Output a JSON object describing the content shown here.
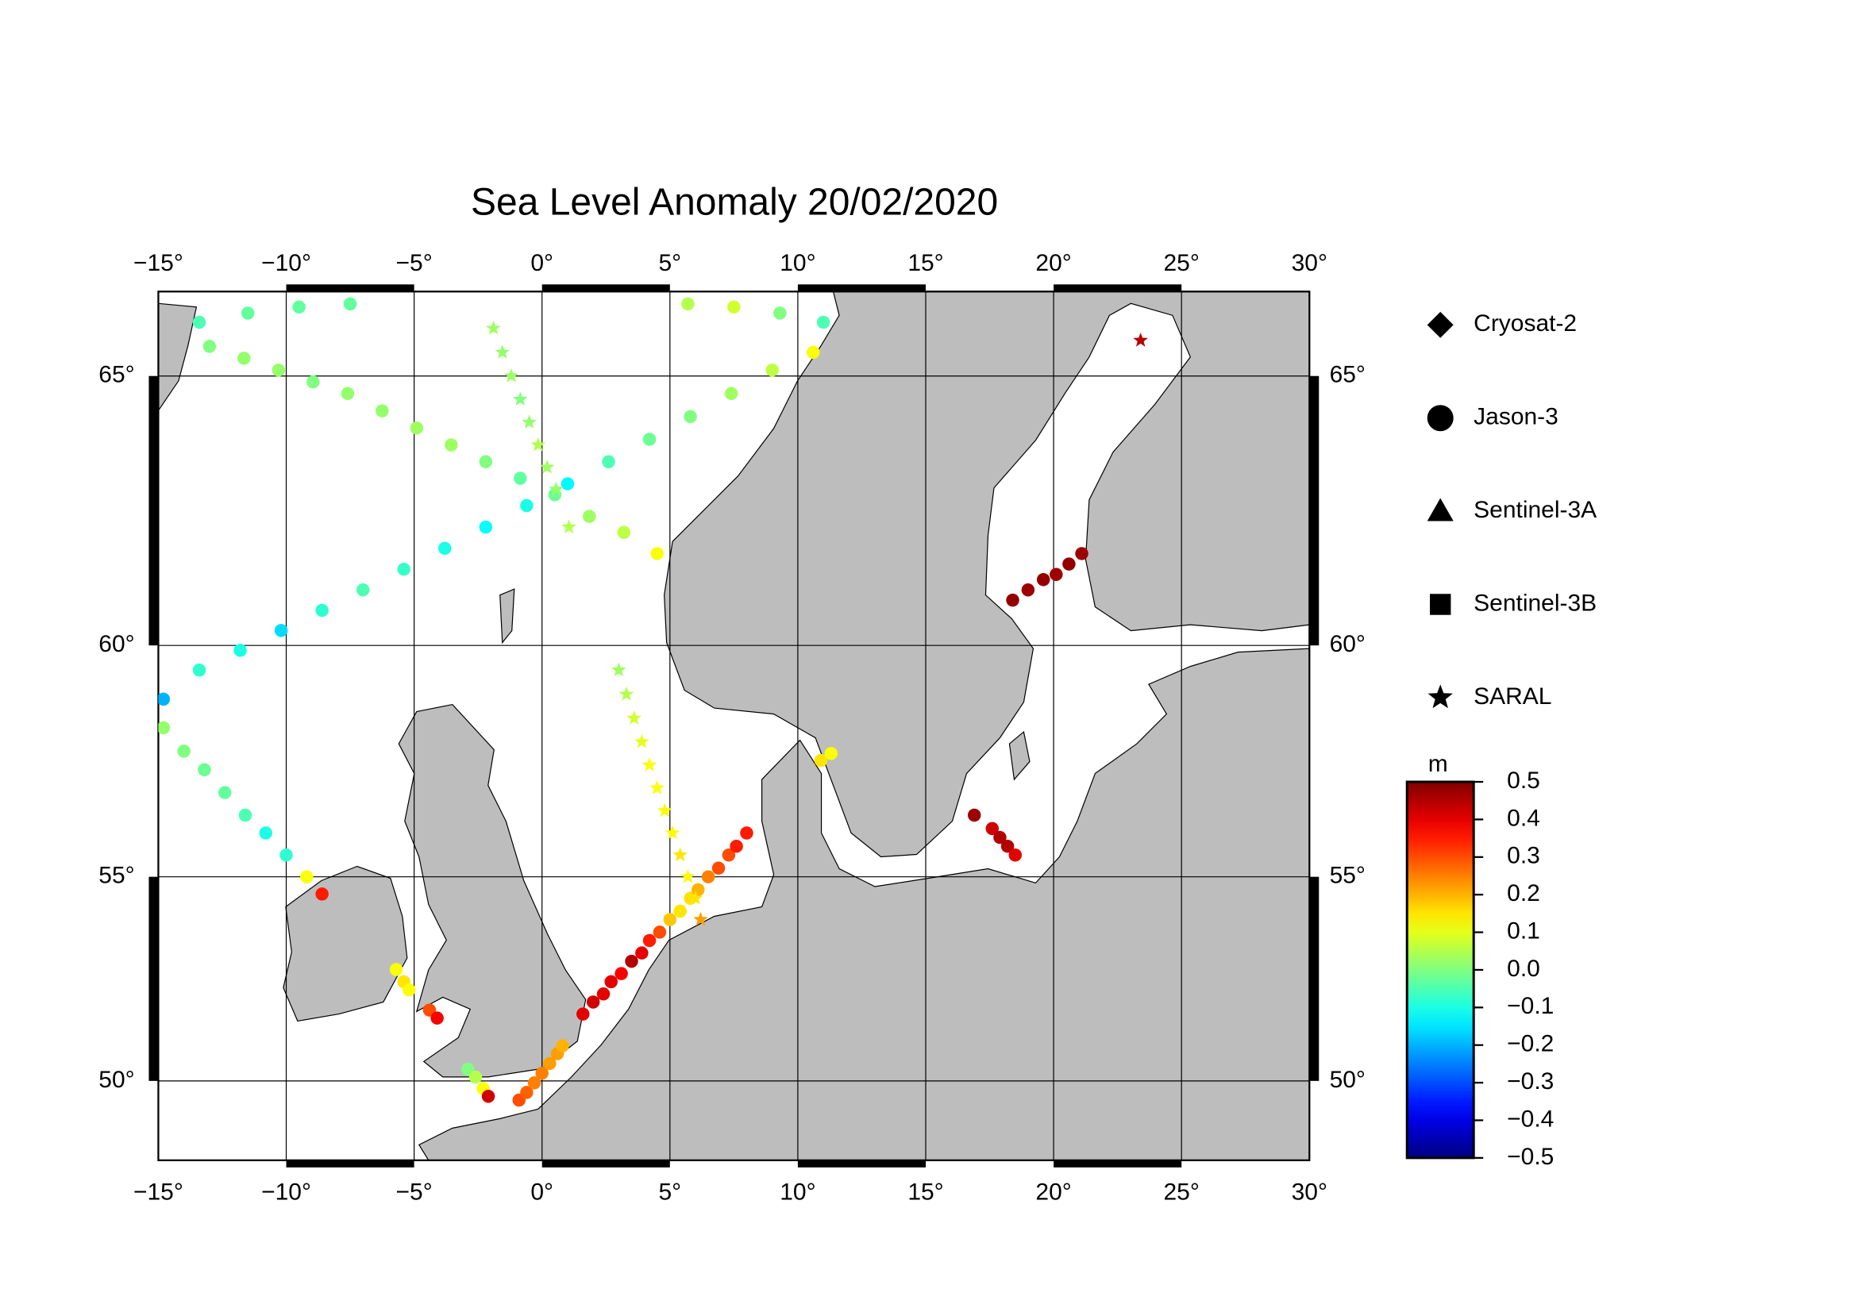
{
  "chart_data": {
    "type": "map",
    "title": "Sea Level Anomaly 20/02/2020",
    "projection": "mercator",
    "xlim": [
      -15,
      30
    ],
    "ylim": [
      47.9,
      66.4
    ],
    "xticks": [
      {
        "value": -15,
        "label": "−15°"
      },
      {
        "value": -10,
        "label": "−10°"
      },
      {
        "value": -5,
        "label": "−5°"
      },
      {
        "value": 0,
        "label": "0°"
      },
      {
        "value": 5,
        "label": "5°"
      },
      {
        "value": 10,
        "label": "10°"
      },
      {
        "value": 15,
        "label": "15°"
      },
      {
        "value": 20,
        "label": "20°"
      },
      {
        "value": 25,
        "label": "25°"
      },
      {
        "value": 30,
        "label": "30°"
      }
    ],
    "yticks": [
      {
        "value": 50,
        "label": "50°"
      },
      {
        "value": 55,
        "label": "55°"
      },
      {
        "value": 60,
        "label": "60°"
      },
      {
        "value": 65,
        "label": "65°"
      }
    ],
    "grid": true,
    "colorbar": {
      "label": "m",
      "colormap": "jet",
      "clim": [
        -0.5,
        0.5
      ],
      "ticks": [
        {
          "value": 0.5,
          "label": "0.5"
        },
        {
          "value": 0.4,
          "label": "0.4"
        },
        {
          "value": 0.3,
          "label": "0.3"
        },
        {
          "value": 0.2,
          "label": "0.2"
        },
        {
          "value": 0.1,
          "label": "0.1"
        },
        {
          "value": 0,
          "label": "0.0"
        },
        {
          "value": -0.1,
          "label": "−0.1"
        },
        {
          "value": -0.2,
          "label": "−0.2"
        },
        {
          "value": -0.3,
          "label": "−0.3"
        },
        {
          "value": -0.4,
          "label": "−0.4"
        },
        {
          "value": -0.5,
          "label": "−0.5"
        }
      ]
    },
    "series": [
      {
        "name": "Cryosat-2",
        "marker": "diamond",
        "lon": [],
        "lat": [],
        "values": []
      },
      {
        "name": "Jason-3",
        "marker": "circle",
        "lon": [
          -13.4,
          -11.8,
          -10.2,
          -8.6,
          -7.0,
          -5.4,
          -3.8,
          -2.2,
          -0.6,
          1.0,
          2.6,
          4.2,
          5.8,
          7.4,
          9.0,
          10.6,
          -13.0,
          -11.65,
          -10.3,
          -8.95,
          -7.6,
          -6.25,
          -4.9,
          -3.55,
          -2.2,
          -0.85,
          0.5,
          1.85,
          3.2,
          4.5,
          -13.4,
          -11.5,
          -9.5,
          -7.5,
          5.7,
          7.5,
          9.3,
          11.0,
          -14.8,
          -14.8,
          -14.0,
          -13.2,
          -12.4,
          -11.6,
          -10.8,
          -10.0,
          -9.2,
          -8.6,
          -5.7,
          -5.4,
          -5.2,
          -4.4,
          -4.1,
          -2.9,
          -2.6,
          -2.3,
          -2.1,
          -0.9,
          -0.6,
          -0.3,
          0.0,
          0.3,
          0.6,
          0.8,
          1.6,
          2.0,
          2.4,
          2.7,
          3.1,
          3.5,
          3.9,
          4.2,
          4.6,
          5.0,
          5.4,
          5.8,
          6.1,
          6.5,
          6.9,
          7.3,
          7.6,
          8.0,
          10.9,
          11.3,
          16.9,
          17.6,
          17.9,
          18.2,
          18.5,
          18.4,
          19.0,
          19.6,
          20.1,
          20.6,
          21.1
        ],
        "lat": [
          59.5,
          59.9,
          60.3,
          60.7,
          61.1,
          61.5,
          61.9,
          62.3,
          62.7,
          63.1,
          63.5,
          63.9,
          64.3,
          64.7,
          65.1,
          65.4,
          65.5,
          65.3,
          65.1,
          64.9,
          64.7,
          64.4,
          64.1,
          63.8,
          63.5,
          63.2,
          62.9,
          62.5,
          62.2,
          61.8,
          65.9,
          66.05,
          66.15,
          66.2,
          66.2,
          66.15,
          66.05,
          65.9,
          58.9,
          58.3,
          57.8,
          57.4,
          56.9,
          56.4,
          56.0,
          55.5,
          55.0,
          54.6,
          52.8,
          52.5,
          52.3,
          51.8,
          51.6,
          50.3,
          50.1,
          49.8,
          49.6,
          49.5,
          49.7,
          49.95,
          50.2,
          50.45,
          50.7,
          50.9,
          51.7,
          52.0,
          52.2,
          52.5,
          52.7,
          53.0,
          53.2,
          53.5,
          53.7,
          54.0,
          54.2,
          54.5,
          54.7,
          55.0,
          55.2,
          55.5,
          55.7,
          56.0,
          57.6,
          57.75,
          56.4,
          56.1,
          55.9,
          55.7,
          55.5,
          60.9,
          61.1,
          61.3,
          61.4,
          61.6,
          61.8
        ],
        "values": [
          -0.08,
          -0.1,
          -0.16,
          -0.08,
          -0.05,
          -0.07,
          -0.1,
          -0.12,
          -0.1,
          -0.13,
          -0.05,
          -0.02,
          0.0,
          0.03,
          0.06,
          0.12,
          0.0,
          0.02,
          0.02,
          0.0,
          0.02,
          0.02,
          0.03,
          0.03,
          0.0,
          -0.03,
          -0.02,
          0.03,
          0.06,
          0.12,
          -0.05,
          -0.03,
          -0.03,
          -0.03,
          0.05,
          0.08,
          0.0,
          -0.05,
          -0.2,
          0.02,
          0.0,
          -0.02,
          -0.03,
          -0.05,
          -0.1,
          -0.08,
          0.12,
          0.35,
          0.12,
          0.15,
          0.12,
          0.3,
          0.38,
          0.0,
          0.05,
          0.12,
          0.42,
          0.3,
          0.28,
          0.25,
          0.25,
          0.22,
          0.22,
          0.2,
          0.4,
          0.42,
          0.4,
          0.4,
          0.38,
          0.45,
          0.4,
          0.35,
          0.3,
          0.18,
          0.15,
          0.15,
          0.2,
          0.25,
          0.3,
          0.3,
          0.35,
          0.35,
          0.15,
          0.12,
          0.47,
          0.42,
          0.45,
          0.45,
          0.4,
          0.48,
          0.47,
          0.48,
          0.47,
          0.48,
          0.47
        ]
      },
      {
        "name": "Sentinel-3A",
        "marker": "triangle",
        "lon": [],
        "lat": [],
        "values": []
      },
      {
        "name": "Sentinel-3B",
        "marker": "square",
        "lon": [],
        "lat": [],
        "values": []
      },
      {
        "name": "SARAL",
        "marker": "star",
        "lon": [
          -1.9,
          -1.55,
          -1.2,
          -0.85,
          -0.5,
          -0.15,
          0.2,
          0.55,
          1.05,
          3.0,
          3.3,
          3.6,
          3.9,
          4.2,
          4.5,
          4.8,
          5.1,
          5.4,
          5.7,
          6.0,
          6.2,
          23.4
        ],
        "lat": [
          65.8,
          65.4,
          65.0,
          64.6,
          64.2,
          63.8,
          63.4,
          63.0,
          62.3,
          59.5,
          59.0,
          58.5,
          58.0,
          57.5,
          57.0,
          56.5,
          56.0,
          55.5,
          55.0,
          54.5,
          54.0,
          65.6
        ],
        "values": [
          0.03,
          0.02,
          0.03,
          0.0,
          0.02,
          0.05,
          0.03,
          0.02,
          0.05,
          0.03,
          0.05,
          0.08,
          0.1,
          0.12,
          0.12,
          0.13,
          0.13,
          0.15,
          0.13,
          0.15,
          0.22,
          0.45
        ]
      }
    ]
  }
}
